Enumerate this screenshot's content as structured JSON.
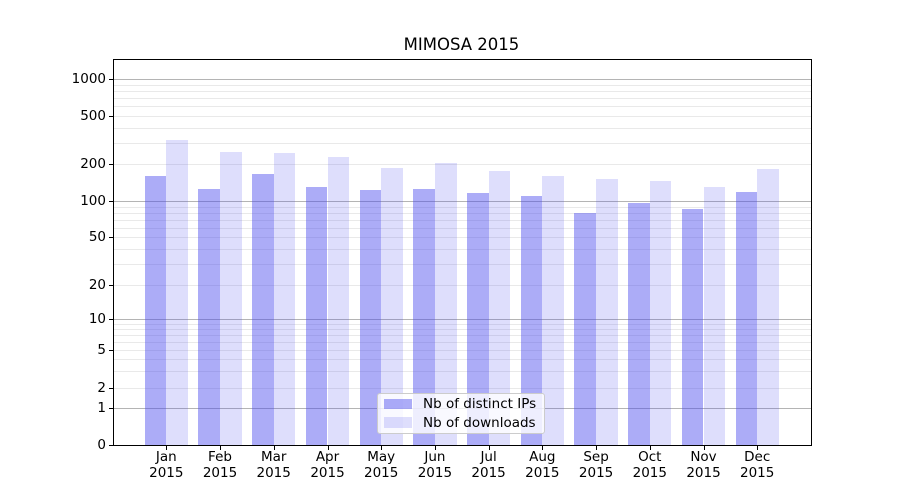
{
  "title": "MIMOSA 2015",
  "legend": {
    "items": [
      {
        "label": "Nb of distinct IPs",
        "color": "rgba(70,70,238,0.45)"
      },
      {
        "label": "Nb of downloads",
        "color": "rgba(70,70,238,0.175)"
      }
    ]
  },
  "axis": {
    "y_tick_labels": [
      "0",
      "1",
      "2",
      "5",
      "10",
      "20",
      "50",
      "100",
      "200",
      "500",
      "1000"
    ],
    "x_year": "2015",
    "x_months": [
      "Jan",
      "Feb",
      "Mar",
      "Apr",
      "May",
      "Jun",
      "Jul",
      "Aug",
      "Sep",
      "Oct",
      "Nov",
      "Dec"
    ]
  },
  "colors": {
    "bar_dark_hex": "#a9a9f8",
    "bar_light_hex": "#dcdcf9",
    "grid_major": "#b4b4b4",
    "grid_minor": "#e9e9e9",
    "spine": "#000000"
  },
  "chart_data": {
    "type": "bar",
    "title": "MIMOSA 2015",
    "categories": [
      "Jan 2015",
      "Feb 2015",
      "Mar 2015",
      "Apr 2015",
      "May 2015",
      "Jun 2015",
      "Jul 2015",
      "Aug 2015",
      "Sep 2015",
      "Oct 2015",
      "Nov 2015",
      "Dec 2015"
    ],
    "series": [
      {
        "name": "Nb of distinct IPs",
        "color": "rgba(70,70,238,0.45)",
        "values": [
          160,
          125,
          165,
          130,
          122,
          126,
          116,
          109,
          80,
          96,
          85,
          118
        ]
      },
      {
        "name": "Nb of downloads",
        "color": "rgba(70,70,238,0.175)",
        "values": [
          315,
          252,
          246,
          228,
          185,
          205,
          174,
          160,
          151,
          146,
          131,
          181
        ]
      }
    ],
    "xlabel": "",
    "ylabel": "",
    "yscale": "symlog",
    "yticks": [
      0,
      1,
      2,
      5,
      10,
      20,
      50,
      100,
      200,
      500,
      1000
    ],
    "ylim": [
      0,
      1400
    ],
    "grid": true,
    "legend_position": "lower center"
  }
}
